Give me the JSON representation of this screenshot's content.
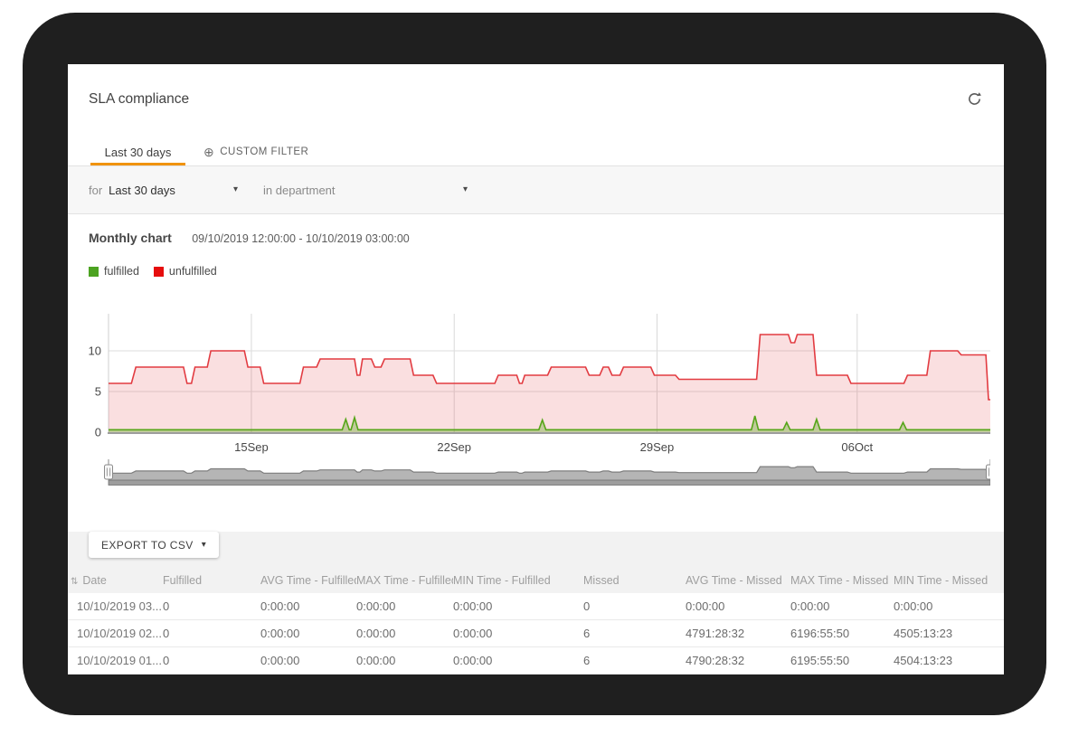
{
  "header": {
    "title": "SLA compliance"
  },
  "tabs": [
    {
      "label": "Last 30 days",
      "active": true
    },
    {
      "label": "CUSTOM FILTER",
      "active": false,
      "icon": "plus-circle-icon"
    }
  ],
  "filter_bar": {
    "for_label": "for",
    "period": "Last 30 days",
    "in_label": "in",
    "department_placeholder": "department"
  },
  "chart_section": {
    "title": "Monthly chart",
    "date_range": "09/10/2019 12:00:00 - 10/10/2019 03:00:00"
  },
  "legend": [
    {
      "label": "fulfilled",
      "color": "#4ca321"
    },
    {
      "label": "unfulfilled",
      "color": "#e60d0d"
    }
  ],
  "chart_data": {
    "type": "area",
    "title": "Monthly chart",
    "subtitle": "09/10/2019 12:00:00 - 10/10/2019 03:00:00",
    "xlabel": "",
    "ylabel": "",
    "ylim": [
      0,
      14.5
    ],
    "y_ticks": [
      0,
      5,
      10
    ],
    "y_gridlines": [
      5,
      10
    ],
    "x_ticks": [
      {
        "label": "15Sep",
        "pos": 0.162
      },
      {
        "label": "22Sep",
        "pos": 0.392
      },
      {
        "label": "29Sep",
        "pos": 0.622
      },
      {
        "label": "06Oct",
        "pos": 0.849
      }
    ],
    "legend_position": "top-left",
    "series": [
      {
        "name": "unfulfilled",
        "color": "#e23b41",
        "fill_opacity": 0.16,
        "type": "step-area",
        "points": [
          [
            0,
            6
          ],
          [
            0.026,
            6
          ],
          [
            0.031,
            8
          ],
          [
            0.085,
            8
          ],
          [
            0.089,
            6
          ],
          [
            0.094,
            6
          ],
          [
            0.098,
            8
          ],
          [
            0.112,
            8
          ],
          [
            0.116,
            10
          ],
          [
            0.154,
            10
          ],
          [
            0.158,
            8
          ],
          [
            0.172,
            8
          ],
          [
            0.176,
            6
          ],
          [
            0.217,
            6
          ],
          [
            0.221,
            8
          ],
          [
            0.236,
            8
          ],
          [
            0.24,
            9
          ],
          [
            0.279,
            9
          ],
          [
            0.282,
            7
          ],
          [
            0.285,
            7
          ],
          [
            0.288,
            9
          ],
          [
            0.298,
            9
          ],
          [
            0.302,
            8
          ],
          [
            0.309,
            8
          ],
          [
            0.313,
            9
          ],
          [
            0.342,
            9
          ],
          [
            0.346,
            7
          ],
          [
            0.368,
            7
          ],
          [
            0.372,
            6
          ],
          [
            0.438,
            6
          ],
          [
            0.442,
            7
          ],
          [
            0.463,
            7
          ],
          [
            0.466,
            6
          ],
          [
            0.469,
            6
          ],
          [
            0.472,
            7
          ],
          [
            0.498,
            7
          ],
          [
            0.502,
            8
          ],
          [
            0.541,
            8
          ],
          [
            0.545,
            7
          ],
          [
            0.557,
            7
          ],
          [
            0.561,
            8
          ],
          [
            0.567,
            8
          ],
          [
            0.571,
            7
          ],
          [
            0.58,
            7
          ],
          [
            0.584,
            8
          ],
          [
            0.615,
            8
          ],
          [
            0.619,
            7
          ],
          [
            0.643,
            7
          ],
          [
            0.647,
            6.5
          ],
          [
            0.735,
            6.5
          ],
          [
            0.739,
            12
          ],
          [
            0.771,
            12
          ],
          [
            0.774,
            11
          ],
          [
            0.778,
            11
          ],
          [
            0.781,
            12
          ],
          [
            0.799,
            12
          ],
          [
            0.803,
            7
          ],
          [
            0.838,
            7
          ],
          [
            0.842,
            6
          ],
          [
            0.902,
            6
          ],
          [
            0.906,
            7
          ],
          [
            0.928,
            7
          ],
          [
            0.932,
            10
          ],
          [
            0.963,
            10
          ],
          [
            0.967,
            9.5
          ],
          [
            0.995,
            9.5
          ],
          [
            0.998,
            4
          ],
          [
            1,
            4
          ]
        ]
      },
      {
        "name": "fulfilled",
        "color": "#56a519",
        "type": "spike-line",
        "baseline": 0.3,
        "spikes": [
          [
            0.269,
            1.6
          ],
          [
            0.279,
            1.8
          ],
          [
            0.492,
            1.5
          ],
          [
            0.733,
            2
          ],
          [
            0.769,
            1.2
          ],
          [
            0.803,
            1.6
          ],
          [
            0.901,
            1.2
          ]
        ]
      }
    ],
    "navigator": {
      "fill": "#b5b5b5",
      "stroke": "#7e7e7e",
      "track_color": "#9e9e9e"
    }
  },
  "export_button": {
    "label": "EXPORT TO CSV"
  },
  "table": {
    "sort_glyph": "⇅",
    "columns": [
      "Date",
      "Fulfilled",
      "AVG Time - Fulfilled",
      "MAX Time - Fulfilled",
      "MIN Time - Fulfilled",
      "Missed",
      "AVG Time - Missed",
      "MAX Time - Missed",
      "MIN Time - Missed"
    ],
    "rows": [
      [
        "10/10/2019 03...",
        "0",
        "0:00:00",
        "0:00:00",
        "0:00:00",
        "0",
        "0:00:00",
        "0:00:00",
        "0:00:00"
      ],
      [
        "10/10/2019 02...",
        "0",
        "0:00:00",
        "0:00:00",
        "0:00:00",
        "6",
        "4791:28:32",
        "6196:55:50",
        "4505:13:23"
      ],
      [
        "10/10/2019 01...",
        "0",
        "0:00:00",
        "0:00:00",
        "0:00:00",
        "6",
        "4790:28:32",
        "6195:55:50",
        "4504:13:23"
      ]
    ]
  },
  "glyphs": {
    "caret_down": "▾",
    "plus_circle": "⊕"
  },
  "colors": {
    "accent_orange": "#f0930f",
    "unfulfilled_red": "#e23b41",
    "fulfilled_green": "#56a519",
    "frame": "#1f1f1f",
    "section_gray": "#f2f2f2"
  }
}
